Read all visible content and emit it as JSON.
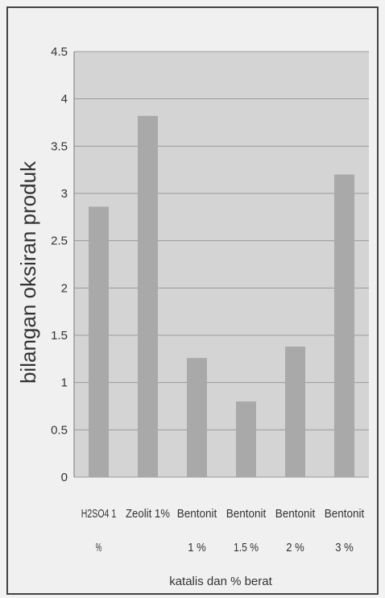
{
  "chart_data": {
    "type": "bar",
    "title": "",
    "xlabel": "katalis dan % berat",
    "ylabel": "bilangan oksiran produk",
    "ylim": [
      0,
      4.5
    ],
    "yticks": [
      "0",
      "0.5",
      "1",
      "1.5",
      "2",
      "2.5",
      "3",
      "3.5",
      "4",
      "4.5"
    ],
    "categories": [
      [
        "H2SO4 1",
        "%"
      ],
      [
        "Zeolit 1%",
        ""
      ],
      [
        "Bentonit",
        "1 %"
      ],
      [
        "Bentonit",
        "1.5 %"
      ],
      [
        "Bentonit",
        "2 %"
      ],
      [
        "Bentonit",
        "3 %"
      ]
    ],
    "values": [
      2.86,
      3.82,
      1.26,
      0.8,
      1.38,
      3.2
    ],
    "grid": true,
    "colors": {
      "plot_background": "#d4d4d4",
      "bar": "#a9a9a9",
      "grid": "#9a9a9a",
      "page": "#f0f0f0"
    }
  }
}
